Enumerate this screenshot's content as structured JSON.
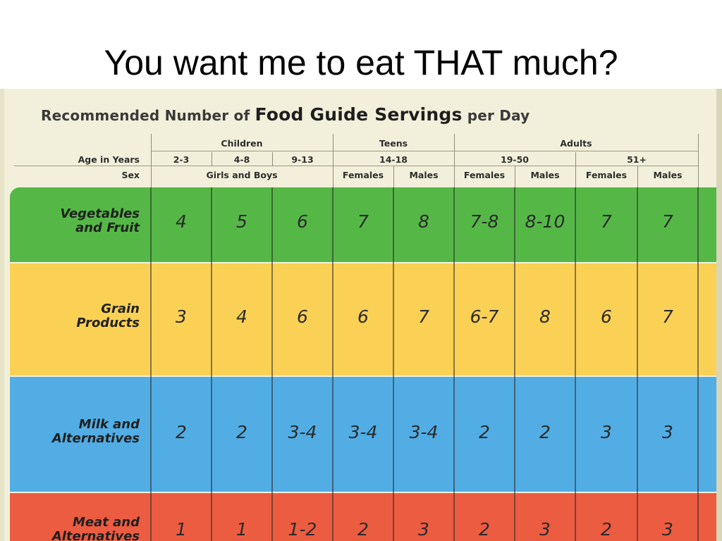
{
  "slide": {
    "title": "You want me to eat THAT much?"
  },
  "table": {
    "heading_prefix": "Recommended Number of",
    "heading_emphasis": "Food Guide Servings",
    "heading_suffix": "per Day",
    "groups": [
      {
        "label": "Children"
      },
      {
        "label": "Teens"
      },
      {
        "label": "Adults"
      }
    ],
    "age_label": "Age in Years",
    "ages": [
      "2-3",
      "4-8",
      "9-13",
      "14-18",
      "19-50",
      "51+"
    ],
    "sex_label": "Sex",
    "sexes": [
      "Girls and Boys",
      "Females",
      "Males",
      "Females",
      "Males",
      "Females",
      "Males"
    ],
    "rows": [
      {
        "label_line1": "Vegetables",
        "label_line2": "and Fruit",
        "values": [
          "4",
          "5",
          "6",
          "7",
          "8",
          "7-8",
          "8-10",
          "7",
          "7"
        ],
        "color": "#55b846"
      },
      {
        "label_line1": "Grain",
        "label_line2": "Products",
        "values": [
          "3",
          "4",
          "6",
          "6",
          "7",
          "6-7",
          "8",
          "6",
          "7"
        ],
        "color": "#fbd155"
      },
      {
        "label_line1": "Milk and",
        "label_line2": "Alternatives",
        "values": [
          "2",
          "2",
          "3-4",
          "3-4",
          "3-4",
          "2",
          "2",
          "3",
          "3"
        ],
        "color": "#52ade4"
      },
      {
        "label_line1": "Meat and",
        "label_line2": "Alternatives",
        "values": [
          "1",
          "1",
          "1-2",
          "2",
          "3",
          "2",
          "3",
          "2",
          "3"
        ],
        "color": "#ec5c41"
      }
    ]
  }
}
